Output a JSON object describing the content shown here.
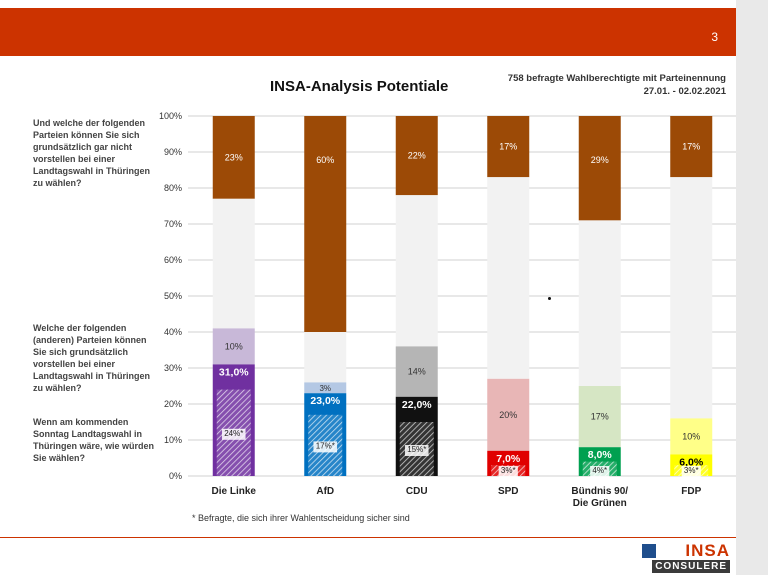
{
  "header": {
    "page_number": "3"
  },
  "title": "INSA-Analysis Potentiale",
  "meta": {
    "line1": "758 befragte Wahlberechtigte mit Parteinennung",
    "line2": "27.01. - 02.02.2021"
  },
  "questions": {
    "q1": "Und welche der folgenden Parteien können Sie sich grundsätzlich gar nicht vorstellen bei einer Landtagswahl in Thüringen zu wählen?",
    "q2": "Welche der folgenden (anderen) Parteien können Sie sich grundsätzlich vorstellen bei einer Landtagswahl in Thüringen zu wählen?",
    "q3": "Wenn am kommenden Sonntag Landtagswahl in Thüringen wäre, wie würden Sie wählen?"
  },
  "footnote": "* Befragte, die sich ihrer Wahlentscheidung sicher sind",
  "logo": {
    "top": "INSA",
    "bottom": "CONSULERE"
  },
  "chart_data": {
    "type": "bar",
    "stacked": true,
    "ylim": [
      0,
      100
    ],
    "yticks": [
      "0%",
      "10%",
      "20%",
      "30%",
      "40%",
      "50%",
      "60%",
      "70%",
      "80%",
      "90%",
      "100%"
    ],
    "grid": true,
    "categories": [
      "Die Linke",
      "AfD",
      "CDU",
      "SPD",
      "Bündnis 90/ Die Grünen",
      "FDP"
    ],
    "category_lines": [
      [
        "Die Linke"
      ],
      [
        "AfD"
      ],
      [
        "CDU"
      ],
      [
        "SPD"
      ],
      [
        "Bündnis 90/",
        "Die Grünen"
      ],
      [
        "FDP"
      ]
    ],
    "party_colors": [
      "#7030a0",
      "#0070c0",
      "#111111",
      "#e00000",
      "#00a050",
      "#ffff00"
    ],
    "light_colors": [
      "#c8b8d8",
      "#b4c8e4",
      "#b5b5b5",
      "#e8b6b6",
      "#d6e6c4",
      "#ffff88"
    ],
    "never_color": "#9c4a06",
    "rest_color": "#f2f2f2",
    "vote": [
      31.0,
      23.0,
      22.0,
      7.0,
      8.0,
      6.0
    ],
    "vote_labels": [
      "31,0%",
      "23,0%",
      "22,0%",
      "7,0%",
      "8,0%",
      "6,0%"
    ],
    "sure": [
      24,
      17,
      15,
      3,
      4,
      3
    ],
    "sure_labels": [
      "24%*",
      "17%*",
      "15%*",
      "3%*",
      "4%*",
      "3%*"
    ],
    "potential": [
      10,
      3,
      14,
      20,
      17,
      10
    ],
    "potential_labels": [
      "10%",
      "3%",
      "14%",
      "20%",
      "17%",
      "10%"
    ],
    "never": [
      23,
      60,
      22,
      17,
      29,
      17
    ],
    "never_labels": [
      "23%",
      "60%",
      "22%",
      "17%",
      "29%",
      "17%"
    ]
  }
}
